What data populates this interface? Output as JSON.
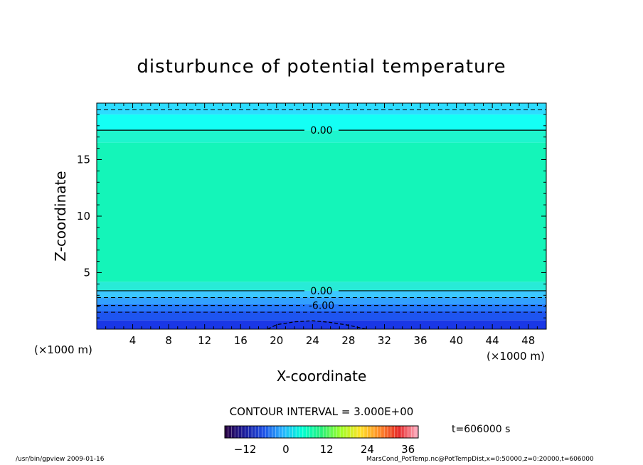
{
  "chart_data": {
    "type": "heatmap",
    "title": "disturbunce of potential temperature",
    "xlabel": "X-coordinate",
    "ylabel": "Z-coordinate",
    "x_unit_left": "(×1000 m)",
    "x_unit_right": "(×1000 m)",
    "xlim": [
      0,
      50
    ],
    "ylim": [
      0,
      20
    ],
    "x_ticks": [
      4,
      8,
      12,
      16,
      20,
      24,
      28,
      32,
      36,
      40,
      44,
      48
    ],
    "y_ticks": [
      5,
      10,
      15
    ],
    "contour_interval_label": "CONTOUR INTERVAL = 3.000E+00",
    "time_label": "t=606000 s",
    "colorbar": {
      "ticks": [
        -12,
        0,
        12,
        24,
        36
      ],
      "range": [
        -18,
        39
      ],
      "colors": [
        "#2a003f",
        "#1a1a9a",
        "#1e50e6",
        "#28b4ff",
        "#00ffd4",
        "#28f07a",
        "#a0ff28",
        "#ffe228",
        "#ff8a28",
        "#e62828",
        "#ffb4c8"
      ]
    },
    "field_bands": [
      {
        "z_from": 0.0,
        "z_to": 0.8,
        "value": -12.0,
        "color": "#1a37e6"
      },
      {
        "z_from": 0.8,
        "z_to": 1.6,
        "value": -10.0,
        "color": "#1e55f0"
      },
      {
        "z_from": 1.6,
        "z_to": 2.2,
        "value": -7.5,
        "color": "#2478fa"
      },
      {
        "z_from": 2.2,
        "z_to": 2.8,
        "value": -5.0,
        "color": "#32a0ff"
      },
      {
        "z_from": 2.8,
        "z_to": 3.4,
        "value": -2.5,
        "color": "#3cc8ff"
      },
      {
        "z_from": 3.4,
        "z_to": 4.2,
        "value": 0.5,
        "color": "#28ebd7"
      },
      {
        "z_from": 4.2,
        "z_to": 16.5,
        "value": 1.5,
        "color": "#14f5b9"
      },
      {
        "z_from": 16.5,
        "z_to": 17.6,
        "value": 0.5,
        "color": "#1ef5cd"
      },
      {
        "z_from": 17.6,
        "z_to": 19.0,
        "value": -1.0,
        "color": "#14fff5"
      },
      {
        "z_from": 19.0,
        "z_to": 20.0,
        "value": -3.0,
        "color": "#2ddcff"
      }
    ],
    "contours": [
      {
        "level": 0.0,
        "z": 17.6,
        "style": "solid",
        "label": "0.00"
      },
      {
        "level": 0.0,
        "z": 3.4,
        "style": "solid",
        "label": "0.00"
      },
      {
        "level": -3.0,
        "z": 19.4,
        "style": "dashed",
        "label": ""
      },
      {
        "level": -3.0,
        "z": 2.8,
        "style": "dashed",
        "label": ""
      },
      {
        "level": -6.0,
        "z": 2.1,
        "style": "dashed",
        "label": "-6.00"
      },
      {
        "level": -9.0,
        "z": 1.5,
        "style": "dashed",
        "label": ""
      }
    ],
    "cold_cell": {
      "x": [
        19,
        20,
        22,
        24,
        26,
        28,
        30
      ],
      "z": [
        0,
        0.4,
        0.65,
        0.75,
        0.6,
        0.35,
        0
      ]
    }
  },
  "footer": {
    "left": "/usr/bin/gpview   2009-01-16",
    "right": "MarsCond_PotTemp.nc@PotTempDist,x=0:50000,z=0:20000,t=606000"
  }
}
